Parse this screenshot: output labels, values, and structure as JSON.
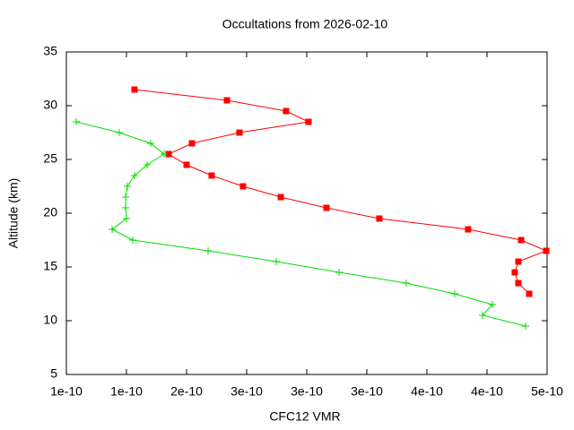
{
  "chart_data": {
    "type": "line",
    "title": "Occultations from 2026-02-10",
    "x_label": "CFC12 VMR",
    "y_label": "Altitude (km)",
    "xlim": [
      1e-10,
      5e-10
    ],
    "xticks": [
      {
        "value": 1e-10,
        "label": "1e-10"
      },
      {
        "value": 1.5e-10,
        "label": "1e-10"
      },
      {
        "value": 2e-10,
        "label": "2e-10"
      },
      {
        "value": 2.5e-10,
        "label": "3e-10"
      },
      {
        "value": 3e-10,
        "label": "3e-10"
      },
      {
        "value": 3.5e-10,
        "label": "3e-10"
      },
      {
        "value": 4e-10,
        "label": "4e-10"
      },
      {
        "value": 4.5e-10,
        "label": "4e-10"
      },
      {
        "value": 5e-10,
        "label": "5e-10"
      }
    ],
    "ylim": [
      5,
      35
    ],
    "yticks": [
      5,
      10,
      15,
      20,
      25,
      30,
      35
    ],
    "series": [
      {
        "color": "#ff0000",
        "marker": "square",
        "x": [
          1.567e-10,
          2.336e-10,
          2.828e-10,
          3.015e-10,
          2.44e-10,
          2.045e-10,
          1.851e-10,
          2e-10,
          2.209e-10,
          2.47e-10,
          2.784e-10,
          3.164e-10,
          3.604e-10,
          4.343e-10,
          4.784e-10,
          4.993e-10,
          4.761e-10,
          4.731e-10,
          4.761e-10,
          4.851e-10
        ],
        "values": [
          31.5,
          30.5,
          29.5,
          28.5,
          27.5,
          26.5,
          25.5,
          24.5,
          23.5,
          22.5,
          21.5,
          20.5,
          19.5,
          18.5,
          17.5,
          16.5,
          15.5,
          14.5,
          13.5,
          12.5
        ]
      },
      {
        "color": "#00dd00",
        "marker": "plus",
        "x": [
          1.082e-10,
          1.44e-10,
          1.701e-10,
          1.813e-10,
          1.672e-10,
          1.567e-10,
          1.507e-10,
          1.493e-10,
          1.493e-10,
          1.5e-10,
          1.381e-10,
          1.552e-10,
          2.179e-10,
          2.746e-10,
          3.269e-10,
          3.828e-10,
          4.231e-10,
          4.545e-10,
          4.463e-10,
          4.821e-10
        ],
        "values": [
          28.5,
          27.5,
          26.5,
          25.5,
          24.5,
          23.5,
          22.5,
          21.5,
          20.5,
          19.5,
          18.5,
          17.5,
          16.5,
          15.5,
          14.5,
          13.5,
          12.5,
          11.5,
          10.5,
          9.5
        ]
      }
    ]
  }
}
